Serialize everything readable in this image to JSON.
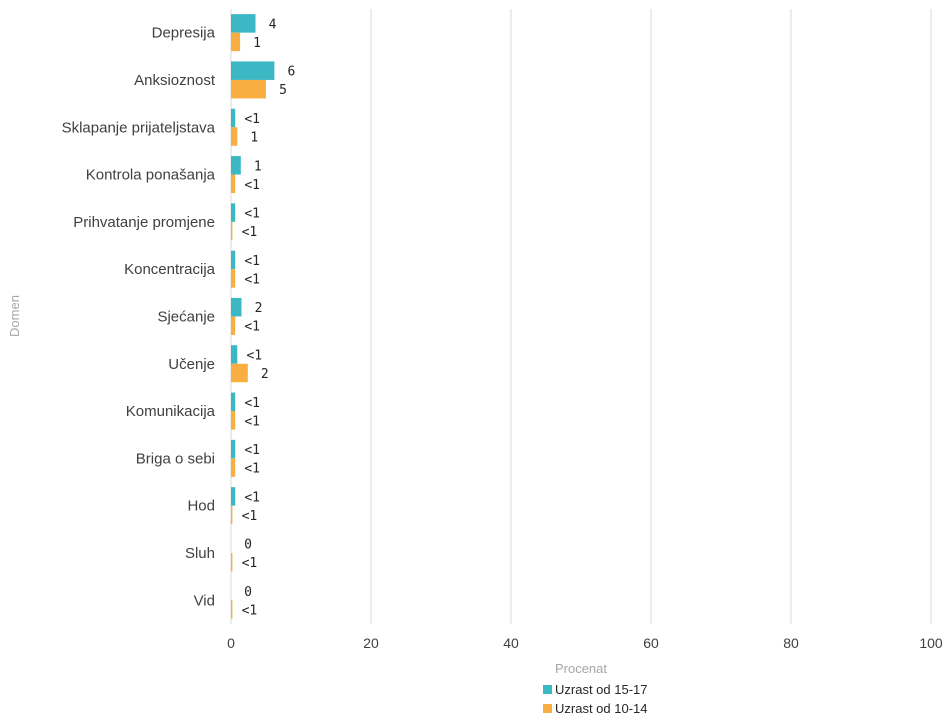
{
  "chart_data": {
    "type": "bar",
    "orientation": "horizontal",
    "xlabel": "Procenat",
    "ylabel": "Domen",
    "xlim": [
      0,
      100
    ],
    "xticks": [
      0,
      20,
      40,
      60,
      80,
      100
    ],
    "grid": true,
    "legend_position": "bottom",
    "categories": [
      "Depresija",
      "Anksioznost",
      "Sklapanje prijateljstava",
      "Kontrola ponašanja",
      "Prihvatanje promjene",
      "Koncentracija",
      "Sjećanje",
      "Učenje",
      "Komunikacija",
      "Briga o sebi",
      "Hod",
      "Sluh",
      "Vid"
    ],
    "series": [
      {
        "name": "Uzrast od 15-17",
        "color": "#3bb8c4",
        "values": [
          3.5,
          6.2,
          0.6,
          1.4,
          0.6,
          0.6,
          1.5,
          0.9,
          0.6,
          0.6,
          0.6,
          0,
          0
        ],
        "labels": [
          "4",
          "6",
          "<1",
          "1",
          "<1",
          "<1",
          "2",
          "<1",
          "<1",
          "<1",
          "<1",
          "0",
          "0"
        ]
      },
      {
        "name": "Uzrast od 10-14",
        "color": "#f9ae42",
        "values": [
          1.3,
          5.0,
          0.9,
          0.6,
          0.2,
          0.6,
          0.6,
          2.4,
          0.6,
          0.6,
          0.2,
          0.2,
          0.2
        ],
        "labels": [
          "1",
          "5",
          "1",
          "<1",
          "<1",
          "<1",
          "<1",
          "2",
          "<1",
          "<1",
          "<1",
          "<1",
          "<1"
        ]
      }
    ]
  }
}
